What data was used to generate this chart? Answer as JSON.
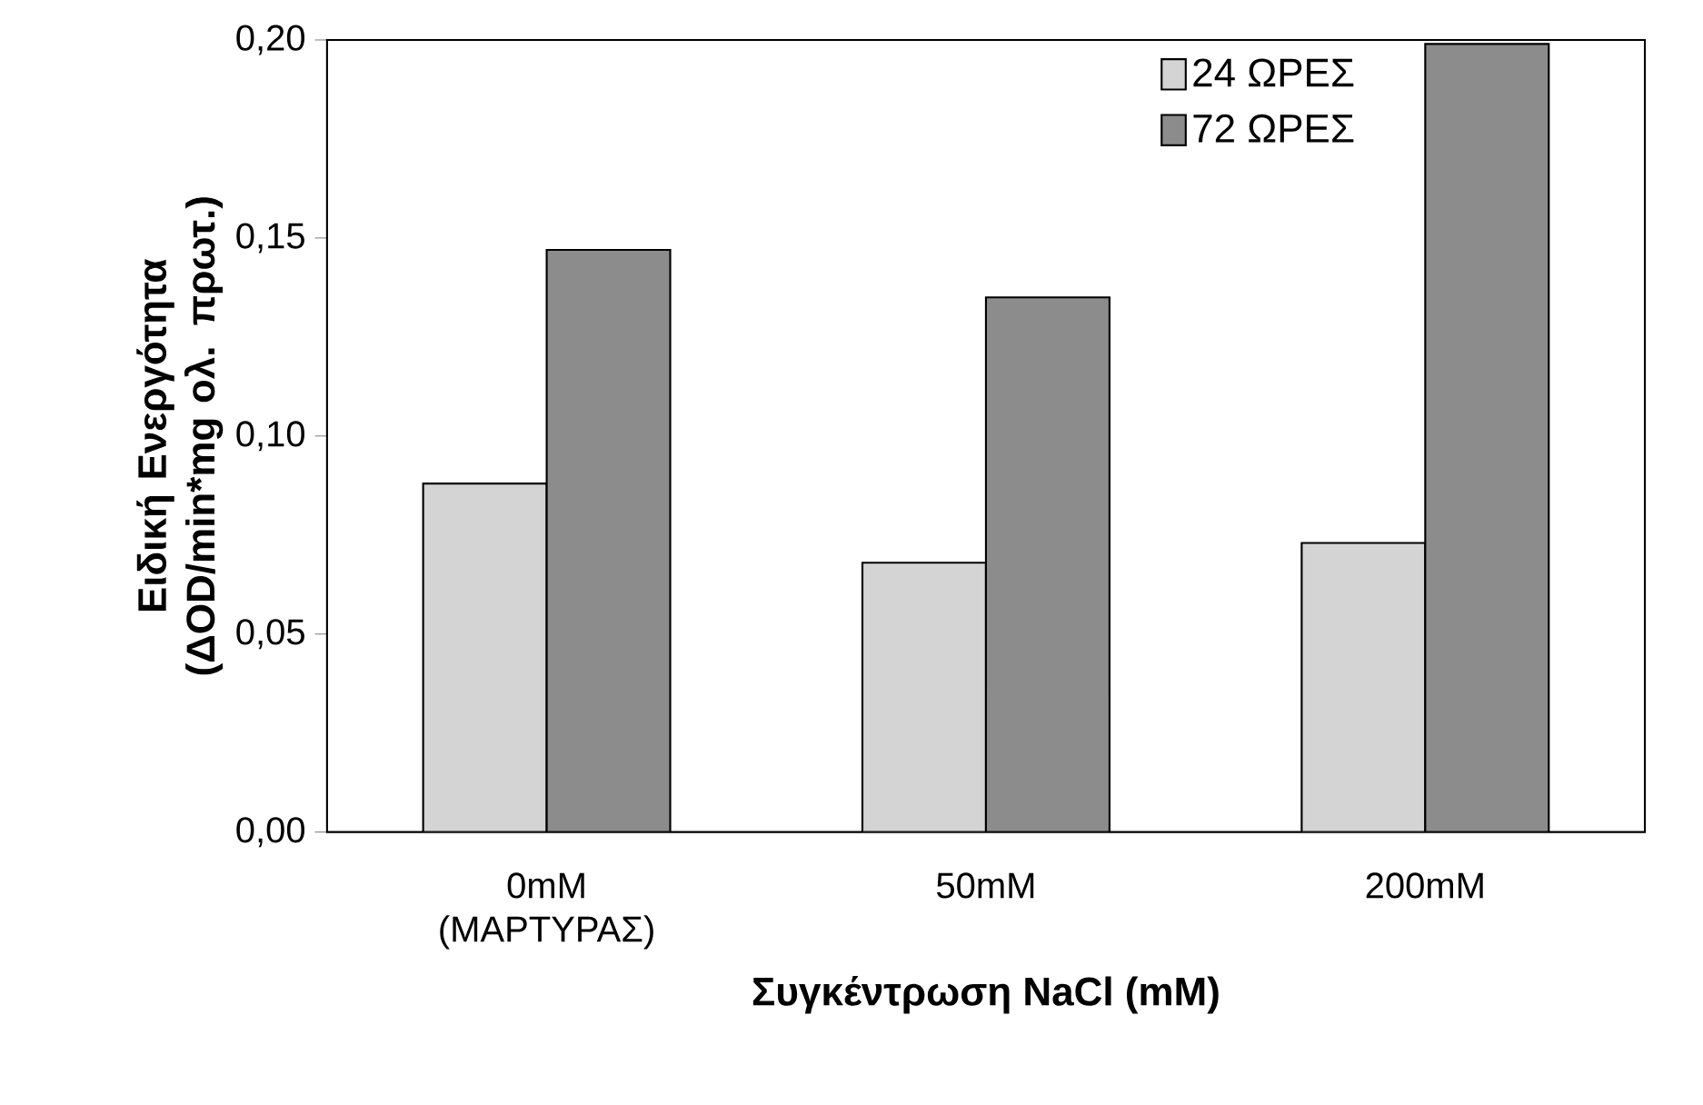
{
  "chart_data": {
    "type": "bar",
    "xlabel": "Συγκέντρωση NaCl (mM)",
    "ylabel": "Ειδική Ενεργότητα (ΔOD/min*mg ολ. πρωτ.)",
    "categories": [
      "0mM (ΜΑΡΤΥΡΑΣ)",
      "50mM",
      "200mM"
    ],
    "series": [
      {
        "name": "24 ΩΡΕΣ",
        "color": "#d4d4d4",
        "values": [
          0.088,
          0.068,
          0.073
        ]
      },
      {
        "name": "72 ΩΡΕΣ",
        "color": "#8c8c8c",
        "values": [
          0.147,
          0.135,
          0.199
        ]
      }
    ],
    "ylim": [
      0,
      0.2
    ],
    "yticks": [
      {
        "value": 0,
        "label": "0,00"
      },
      {
        "value": 0.05,
        "label": "0,05"
      },
      {
        "value": 0.1,
        "label": "0,10"
      },
      {
        "value": 0.15,
        "label": "0,15"
      },
      {
        "value": 0.2,
        "label": "0,20"
      }
    ],
    "legend": "top right",
    "grid": false
  }
}
